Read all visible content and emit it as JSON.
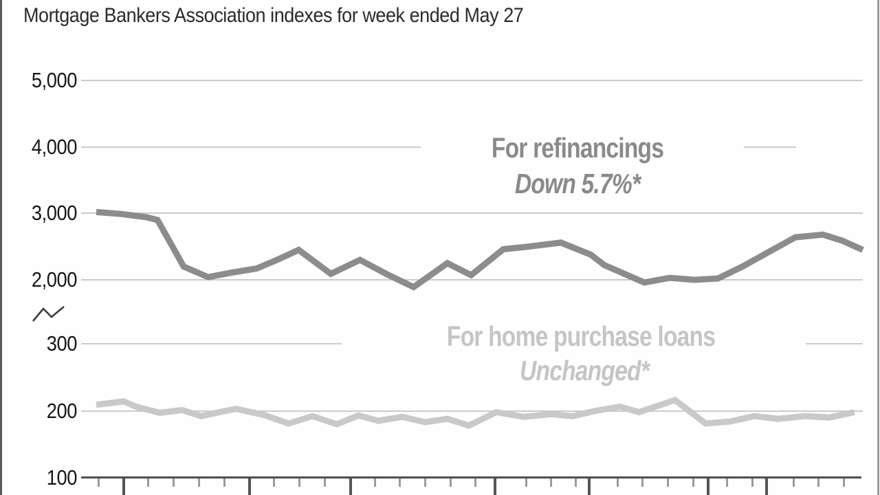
{
  "title": "Mortgage Bankers Association indexes for week ended May 27",
  "colors": {
    "refinancings_line": "#8c8c8c",
    "purchase_line": "#c9c9c9",
    "gridline": "#cbcbcb",
    "axis_baseline": "#4f4f4f",
    "title_text": "#2b2b2b"
  },
  "y_axis": {
    "labels": [
      "5,000",
      "4,000",
      "3,000",
      "2,000",
      "300",
      "200",
      "100"
    ],
    "has_break": true
  },
  "x_axis": {
    "minor_ticks_pct": [
      0.3,
      6.8,
      10.1,
      13.4,
      16.7,
      23.2,
      26.5,
      29.8,
      36.4,
      39.6,
      42.9,
      46.2,
      49.5,
      56.1,
      59.3,
      62.6,
      68.0,
      71.3,
      74.6,
      77.9,
      82.3,
      85.6,
      91.0,
      94.2,
      97.5
    ],
    "major_ticks_pct": [
      3.6,
      20.0,
      33.2,
      52.0,
      64.3,
      79.8,
      87.4
    ]
  },
  "legend": {
    "refinancings_label": "For refinancings",
    "refinancings_change": "Down 5.7%*",
    "purchase_label": "For home purchase loans",
    "purchase_change": "Unchanged*"
  },
  "chart_data": {
    "type": "line",
    "title": "Mortgage Bankers Association indexes for week ended May 27",
    "grid": "horizontal-only",
    "broken_y_axis": {
      "upper_range": [
        2000,
        5000
      ],
      "upper_ticks": [
        2000,
        3000,
        4000,
        5000
      ],
      "lower_range": [
        100,
        300
      ],
      "lower_ticks": [
        100,
        200,
        300
      ]
    },
    "series": [
      {
        "name": "For refinancings",
        "note": "Down 5.7%*",
        "axis": "upper",
        "color": "#8c8c8c",
        "points": [
          [
            0,
            3020
          ],
          [
            3.3,
            2990
          ],
          [
            6.6,
            2940
          ],
          [
            8.0,
            2900
          ],
          [
            11.4,
            2200
          ],
          [
            14.6,
            2040
          ],
          [
            17.7,
            2110
          ],
          [
            20.9,
            2170
          ],
          [
            23.6,
            2300
          ],
          [
            26.4,
            2450
          ],
          [
            30.6,
            2090
          ],
          [
            34.4,
            2300
          ],
          [
            38.0,
            2080
          ],
          [
            41.4,
            1890
          ],
          [
            45.8,
            2250
          ],
          [
            48.9,
            2070
          ],
          [
            53.1,
            2460
          ],
          [
            56.4,
            2500
          ],
          [
            60.6,
            2560
          ],
          [
            64.5,
            2380
          ],
          [
            66.3,
            2220
          ],
          [
            71.5,
            1960
          ],
          [
            74.8,
            2030
          ],
          [
            78.0,
            2000
          ],
          [
            81.1,
            2020
          ],
          [
            84.3,
            2200
          ],
          [
            87.9,
            2430
          ],
          [
            91.2,
            2640
          ],
          [
            94.8,
            2680
          ],
          [
            97.3,
            2590
          ],
          [
            100,
            2450
          ]
        ]
      },
      {
        "name": "For home purchase loans",
        "note": "Unchanged*",
        "axis": "lower",
        "color": "#c9c9c9",
        "points": [
          [
            0,
            209
          ],
          [
            3.6,
            214
          ],
          [
            5.2,
            206
          ],
          [
            8.3,
            197
          ],
          [
            11.2,
            201
          ],
          [
            13.7,
            192
          ],
          [
            16.1,
            198
          ],
          [
            18.2,
            203
          ],
          [
            21.8,
            194
          ],
          [
            25.1,
            181
          ],
          [
            28.2,
            192
          ],
          [
            31.4,
            180
          ],
          [
            34.2,
            193
          ],
          [
            36.8,
            185
          ],
          [
            39.9,
            191
          ],
          [
            42.9,
            183
          ],
          [
            45.8,
            188
          ],
          [
            48.6,
            178
          ],
          [
            52.2,
            198
          ],
          [
            55.8,
            191
          ],
          [
            59.4,
            195
          ],
          [
            62.1,
            192
          ],
          [
            65.2,
            200
          ],
          [
            68.3,
            206
          ],
          [
            70.8,
            198
          ],
          [
            75.5,
            216
          ],
          [
            79.5,
            181
          ],
          [
            82.7,
            184
          ],
          [
            85.8,
            192
          ],
          [
            89.0,
            188
          ],
          [
            92.4,
            192
          ],
          [
            95.6,
            190
          ],
          [
            98.9,
            198
          ]
        ]
      }
    ]
  }
}
